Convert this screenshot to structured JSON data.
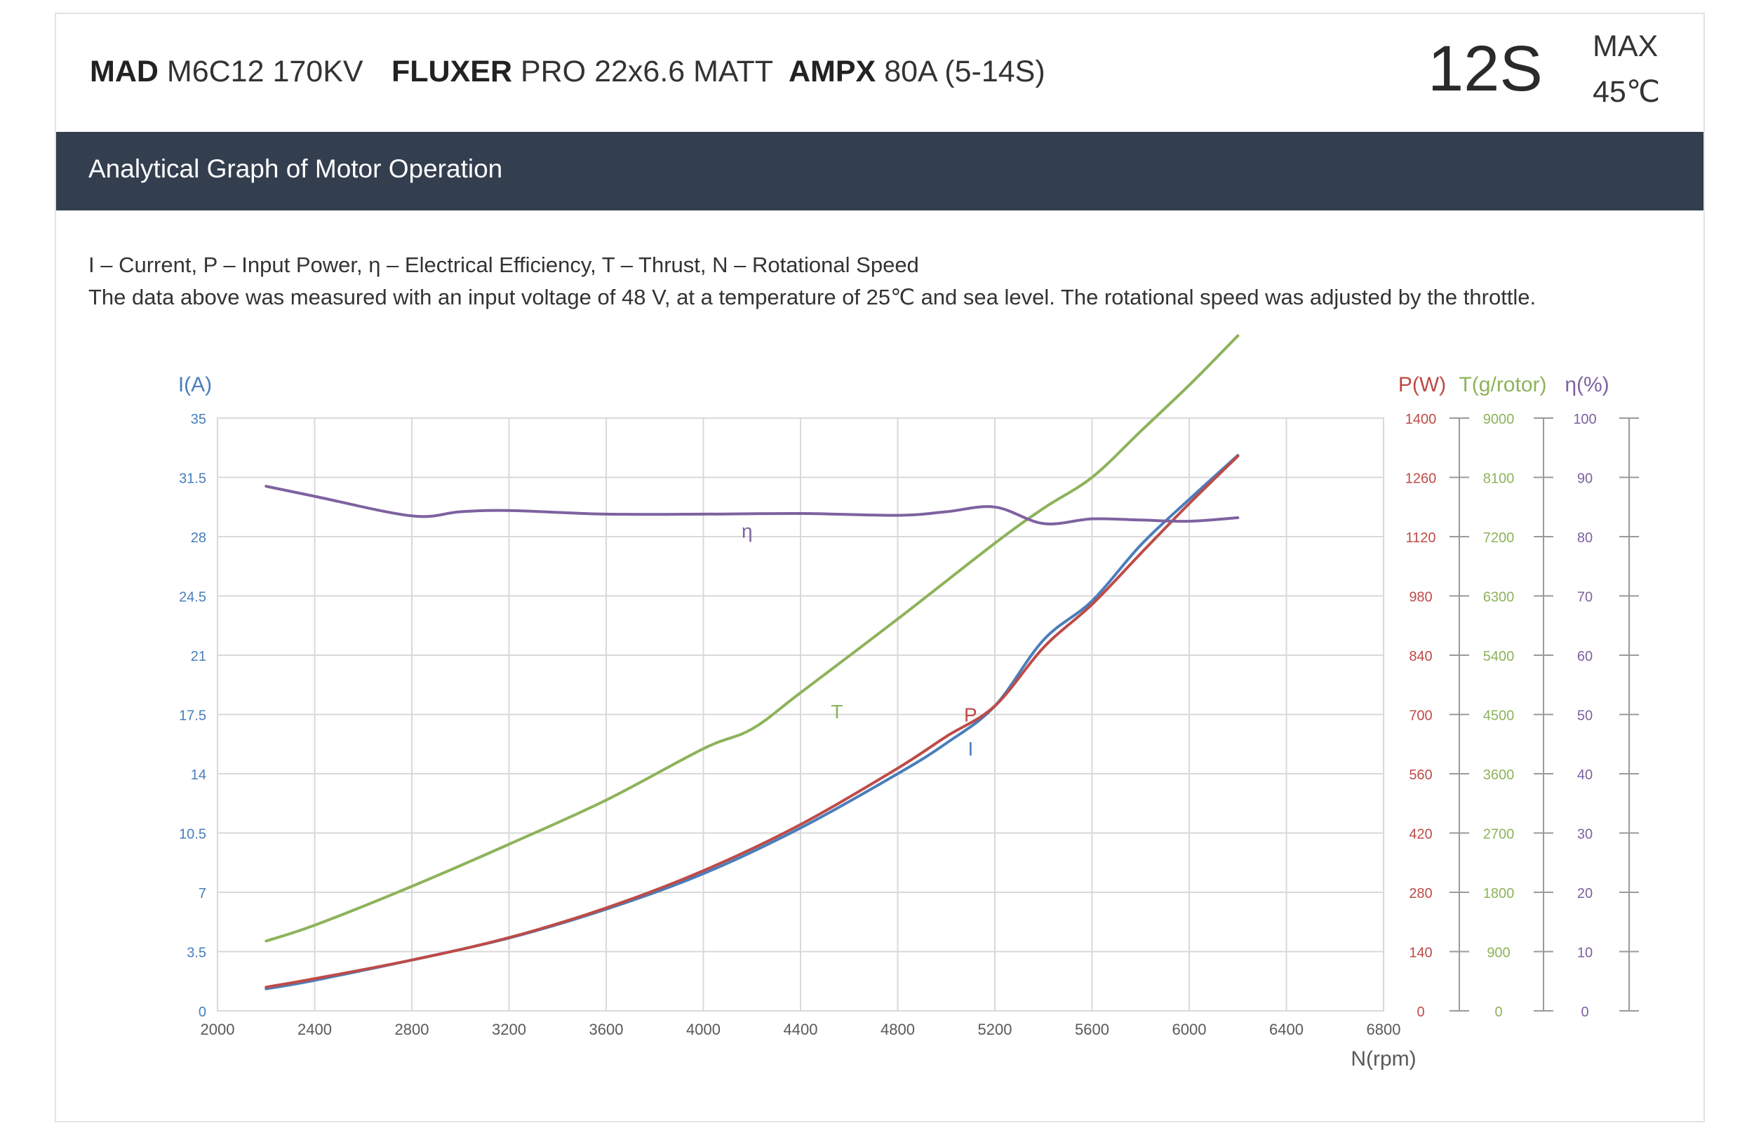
{
  "header": {
    "motor_brand": "MAD",
    "motor_model": "M6C12 170KV",
    "prop_brand": "FLUXER",
    "prop_model": "PRO 22x6.6 MATT",
    "esc_brand": "AMPX",
    "esc_model": "80A (5-14S)",
    "cells": "12S",
    "max_label": "MAX",
    "max_temp": "45℃"
  },
  "banner": {
    "title": "Analytical Graph of Motor Operation"
  },
  "description": {
    "legend": "I – Current, P – Input Power, η – Electrical Efficiency, T – Thrust,   N – Rotational Speed",
    "note": "The data above was measured with an input voltage of 48 V, at a temperature of 25℃ and sea level. The rotational speed was adjusted by the throttle."
  },
  "colors": {
    "current": "#4a7ebb",
    "power": "#be4b48",
    "thrust": "#8db35a",
    "efficiency": "#7d62a0",
    "grid": "#d9d9d9",
    "banner": "#333e4f"
  },
  "chart_data": {
    "type": "line",
    "xlabel": "N(rpm)",
    "xlim": [
      2000,
      6800
    ],
    "x_ticks": [
      "2000",
      "2400",
      "2800",
      "3200",
      "3600",
      "4000",
      "4400",
      "4800",
      "5200",
      "5600",
      "6000",
      "6400",
      "6800"
    ],
    "grid": true,
    "axes": [
      {
        "label": "I(A)",
        "side": "left",
        "color": "#4a7ebb",
        "lim": [
          0,
          35
        ],
        "ticks": [
          "0",
          "3.5",
          "7",
          "10.5",
          "14",
          "17.5",
          "21",
          "24.5",
          "28",
          "31.5",
          "35"
        ]
      },
      {
        "label": "P(W)",
        "side": "right",
        "color": "#be4b48",
        "lim": [
          0,
          1400
        ],
        "ticks": [
          "0",
          "140",
          "280",
          "420",
          "560",
          "700",
          "840",
          "980",
          "1120",
          "1260",
          "1400"
        ]
      },
      {
        "label": "T(g/rotor)",
        "side": "right",
        "color": "#8db35a",
        "lim": [
          0,
          9000
        ],
        "ticks": [
          "0",
          "900",
          "1800",
          "2700",
          "3600",
          "4500",
          "5400",
          "6300",
          "7200",
          "8100",
          "9000"
        ]
      },
      {
        "label": "η(%)",
        "side": "right",
        "color": "#7d62a0",
        "lim": [
          0,
          100
        ],
        "ticks": [
          "0",
          "10",
          "20",
          "30",
          "40",
          "50",
          "60",
          "70",
          "80",
          "90",
          "100"
        ]
      }
    ],
    "series": [
      {
        "name": "I",
        "axis": 0,
        "color": "#4a7ebb",
        "x": [
          2200,
          2400,
          2800,
          3200,
          3600,
          4000,
          4400,
          4800,
          5000,
          5200,
          5400,
          5600,
          5800,
          6000,
          6200
        ],
        "y": [
          1.3,
          1.8,
          3.0,
          4.3,
          6.0,
          8.1,
          10.8,
          14.0,
          15.8,
          18.0,
          21.9,
          24.2,
          27.5,
          30.2,
          32.8
        ],
        "label_at": [
          5100,
          15.5
        ]
      },
      {
        "name": "P",
        "axis": 1,
        "color": "#be4b48",
        "x": [
          2200,
          2400,
          2800,
          3200,
          3600,
          4000,
          4400,
          4800,
          5000,
          5200,
          5400,
          5600,
          5800,
          6000,
          6200
        ],
        "y": [
          56,
          76,
          120,
          173,
          243,
          331,
          440,
          573,
          648,
          720,
          858,
          960,
          1080,
          1198,
          1310
        ],
        "label_at": [
          5100,
          700
        ]
      },
      {
        "name": "T",
        "axis": 2,
        "color": "#8db35a",
        "x": [
          2200,
          2400,
          2800,
          3200,
          3600,
          4000,
          4200,
          4400,
          4800,
          5200,
          5400,
          5600,
          5800,
          6000,
          6200
        ],
        "y": [
          1060,
          1300,
          1890,
          2530,
          3200,
          3980,
          4280,
          4830,
          5950,
          7100,
          7630,
          8100,
          8800,
          9500,
          10250
        ],
        "label_at": [
          4550,
          4550
        ]
      },
      {
        "name": "η",
        "axis": 3,
        "color": "#7d62a0",
        "x": [
          2200,
          2400,
          2800,
          3000,
          3200,
          3600,
          4000,
          4400,
          4800,
          5000,
          5200,
          5400,
          5600,
          5800,
          6000,
          6200
        ],
        "y": [
          88.5,
          86.8,
          83.5,
          84.2,
          84.4,
          83.8,
          83.8,
          83.9,
          83.6,
          84.2,
          85.0,
          82.2,
          83.0,
          82.8,
          82.6,
          83.2
        ],
        "label_at": [
          4180,
          81
        ]
      }
    ]
  }
}
